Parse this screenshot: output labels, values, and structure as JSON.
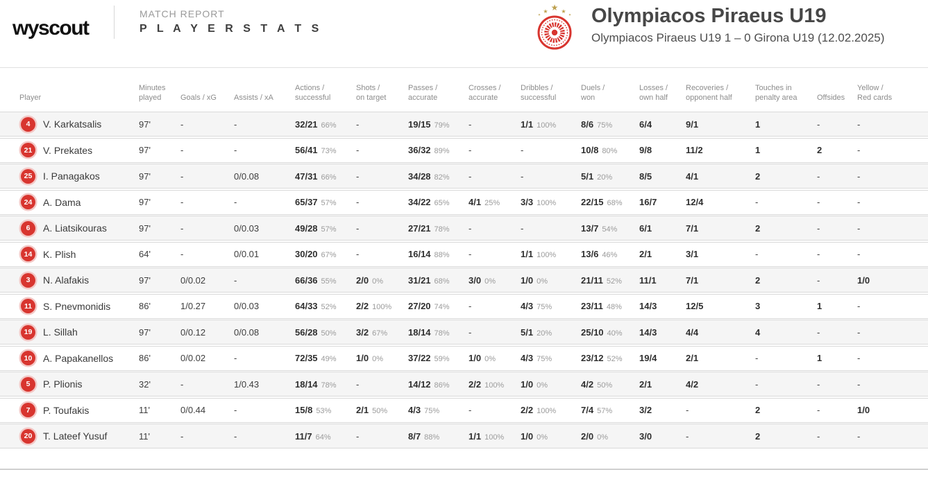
{
  "header": {
    "logo_text": "wyscout",
    "report_type": "MATCH REPORT",
    "report_name": "P L A Y E R   S T A T S",
    "team_title": "Olympiacos Piraeus U19",
    "match_subtitle": "Olympiacos Piraeus U19 1 – 0 Girona U19 (12.02.2025)",
    "crest_icon": "olympiacos-crest-icon"
  },
  "colors": {
    "accent_red": "#d8352f",
    "badge_ring": "#f3c8c6",
    "star_gold": "#bda04e",
    "row_alt_bg": "#f5f5f5",
    "row_border": "#d9d9d9",
    "text_primary": "#2f2f2f",
    "text_secondary": "#9b9b9b",
    "header_text": "#8c8c8c"
  },
  "table": {
    "columns": [
      {
        "key": "player",
        "label": "Player",
        "strong": false
      },
      {
        "key": "minutes",
        "label": "Minutes\nplayed",
        "strong": false
      },
      {
        "key": "goals",
        "label": "Goals / xG",
        "strong": false
      },
      {
        "key": "assists",
        "label": "Assists / xA",
        "strong": false
      },
      {
        "key": "actions",
        "label": "Actions /\nsuccessful",
        "strong": true
      },
      {
        "key": "shots",
        "label": "Shots /\non target",
        "strong": true
      },
      {
        "key": "passes",
        "label": "Passes /\naccurate",
        "strong": true
      },
      {
        "key": "crosses",
        "label": "Crosses /\naccurate",
        "strong": true
      },
      {
        "key": "dribbles",
        "label": "Dribbles /\nsuccessful",
        "strong": true
      },
      {
        "key": "duels",
        "label": "Duels /\nwon",
        "strong": true
      },
      {
        "key": "losses",
        "label": "Losses /\nown half",
        "strong": true
      },
      {
        "key": "recoveries",
        "label": "Recoveries /\nopponent half",
        "strong": true
      },
      {
        "key": "touches",
        "label": "Touches in\npenalty area",
        "strong": true
      },
      {
        "key": "offsides",
        "label": "Offsides",
        "strong": true
      },
      {
        "key": "cards",
        "label": "Yellow /\nRed cards",
        "strong": true
      }
    ],
    "rows": [
      {
        "num": "4",
        "name": "V. Karkatsalis",
        "stats": [
          {
            "v": "97'"
          },
          {
            "v": "-"
          },
          {
            "v": "-"
          },
          {
            "v": "32/21",
            "p": "66%"
          },
          {
            "v": "-"
          },
          {
            "v": "19/15",
            "p": "79%"
          },
          {
            "v": "-"
          },
          {
            "v": "1/1",
            "p": "100%"
          },
          {
            "v": "8/6",
            "p": "75%"
          },
          {
            "v": "6/4"
          },
          {
            "v": "9/1"
          },
          {
            "v": "1"
          },
          {
            "v": "-"
          },
          {
            "v": "-"
          }
        ]
      },
      {
        "num": "21",
        "name": "V. Prekates",
        "stats": [
          {
            "v": "97'"
          },
          {
            "v": "-"
          },
          {
            "v": "-"
          },
          {
            "v": "56/41",
            "p": "73%"
          },
          {
            "v": "-"
          },
          {
            "v": "36/32",
            "p": "89%"
          },
          {
            "v": "-"
          },
          {
            "v": "-"
          },
          {
            "v": "10/8",
            "p": "80%"
          },
          {
            "v": "9/8"
          },
          {
            "v": "11/2"
          },
          {
            "v": "1"
          },
          {
            "v": "2"
          },
          {
            "v": "-"
          }
        ]
      },
      {
        "num": "25",
        "name": "I. Panagakos",
        "stats": [
          {
            "v": "97'"
          },
          {
            "v": "-"
          },
          {
            "v": "0/0.08"
          },
          {
            "v": "47/31",
            "p": "66%"
          },
          {
            "v": "-"
          },
          {
            "v": "34/28",
            "p": "82%"
          },
          {
            "v": "-"
          },
          {
            "v": "-"
          },
          {
            "v": "5/1",
            "p": "20%"
          },
          {
            "v": "8/5"
          },
          {
            "v": "4/1"
          },
          {
            "v": "2"
          },
          {
            "v": "-"
          },
          {
            "v": "-"
          }
        ]
      },
      {
        "num": "24",
        "name": "A. Dama",
        "stats": [
          {
            "v": "97'"
          },
          {
            "v": "-"
          },
          {
            "v": "-"
          },
          {
            "v": "65/37",
            "p": "57%"
          },
          {
            "v": "-"
          },
          {
            "v": "34/22",
            "p": "65%"
          },
          {
            "v": "4/1",
            "p": "25%"
          },
          {
            "v": "3/3",
            "p": "100%"
          },
          {
            "v": "22/15",
            "p": "68%"
          },
          {
            "v": "16/7"
          },
          {
            "v": "12/4"
          },
          {
            "v": "-"
          },
          {
            "v": "-"
          },
          {
            "v": "-"
          }
        ]
      },
      {
        "num": "6",
        "name": "A. Liatsikouras",
        "stats": [
          {
            "v": "97'"
          },
          {
            "v": "-"
          },
          {
            "v": "0/0.03"
          },
          {
            "v": "49/28",
            "p": "57%"
          },
          {
            "v": "-"
          },
          {
            "v": "27/21",
            "p": "78%"
          },
          {
            "v": "-"
          },
          {
            "v": "-"
          },
          {
            "v": "13/7",
            "p": "54%"
          },
          {
            "v": "6/1"
          },
          {
            "v": "7/1"
          },
          {
            "v": "2"
          },
          {
            "v": "-"
          },
          {
            "v": "-"
          }
        ]
      },
      {
        "num": "14",
        "name": "K. Plish",
        "stats": [
          {
            "v": "64'"
          },
          {
            "v": "-"
          },
          {
            "v": "0/0.01"
          },
          {
            "v": "30/20",
            "p": "67%"
          },
          {
            "v": "-"
          },
          {
            "v": "16/14",
            "p": "88%"
          },
          {
            "v": "-"
          },
          {
            "v": "1/1",
            "p": "100%"
          },
          {
            "v": "13/6",
            "p": "46%"
          },
          {
            "v": "2/1"
          },
          {
            "v": "3/1"
          },
          {
            "v": "-"
          },
          {
            "v": "-"
          },
          {
            "v": "-"
          }
        ]
      },
      {
        "num": "3",
        "name": "N. Alafakis",
        "stats": [
          {
            "v": "97'"
          },
          {
            "v": "0/0.02"
          },
          {
            "v": "-"
          },
          {
            "v": "66/36",
            "p": "55%"
          },
          {
            "v": "2/0",
            "p": "0%"
          },
          {
            "v": "31/21",
            "p": "68%"
          },
          {
            "v": "3/0",
            "p": "0%"
          },
          {
            "v": "1/0",
            "p": "0%"
          },
          {
            "v": "21/11",
            "p": "52%"
          },
          {
            "v": "11/1"
          },
          {
            "v": "7/1"
          },
          {
            "v": "2"
          },
          {
            "v": "-"
          },
          {
            "v": "1/0"
          }
        ]
      },
      {
        "num": "11",
        "name": "S. Pnevmonidis",
        "stats": [
          {
            "v": "86'"
          },
          {
            "v": "1/0.27"
          },
          {
            "v": "0/0.03"
          },
          {
            "v": "64/33",
            "p": "52%"
          },
          {
            "v": "2/2",
            "p": "100%"
          },
          {
            "v": "27/20",
            "p": "74%"
          },
          {
            "v": "-"
          },
          {
            "v": "4/3",
            "p": "75%"
          },
          {
            "v": "23/11",
            "p": "48%"
          },
          {
            "v": "14/3"
          },
          {
            "v": "12/5"
          },
          {
            "v": "3"
          },
          {
            "v": "1"
          },
          {
            "v": "-"
          }
        ]
      },
      {
        "num": "19",
        "name": "L. Sillah",
        "stats": [
          {
            "v": "97'"
          },
          {
            "v": "0/0.12"
          },
          {
            "v": "0/0.08"
          },
          {
            "v": "56/28",
            "p": "50%"
          },
          {
            "v": "3/2",
            "p": "67%"
          },
          {
            "v": "18/14",
            "p": "78%"
          },
          {
            "v": "-"
          },
          {
            "v": "5/1",
            "p": "20%"
          },
          {
            "v": "25/10",
            "p": "40%"
          },
          {
            "v": "14/3"
          },
          {
            "v": "4/4"
          },
          {
            "v": "4"
          },
          {
            "v": "-"
          },
          {
            "v": "-"
          }
        ]
      },
      {
        "num": "10",
        "name": "A. Papakanellos",
        "stats": [
          {
            "v": "86'"
          },
          {
            "v": "0/0.02"
          },
          {
            "v": "-"
          },
          {
            "v": "72/35",
            "p": "49%"
          },
          {
            "v": "1/0",
            "p": "0%"
          },
          {
            "v": "37/22",
            "p": "59%"
          },
          {
            "v": "1/0",
            "p": "0%"
          },
          {
            "v": "4/3",
            "p": "75%"
          },
          {
            "v": "23/12",
            "p": "52%"
          },
          {
            "v": "19/4"
          },
          {
            "v": "2/1"
          },
          {
            "v": "-"
          },
          {
            "v": "1"
          },
          {
            "v": "-"
          }
        ]
      },
      {
        "num": "5",
        "name": "P. Plionis",
        "stats": [
          {
            "v": "32'"
          },
          {
            "v": "-"
          },
          {
            "v": "1/0.43"
          },
          {
            "v": "18/14",
            "p": "78%"
          },
          {
            "v": "-"
          },
          {
            "v": "14/12",
            "p": "86%"
          },
          {
            "v": "2/2",
            "p": "100%"
          },
          {
            "v": "1/0",
            "p": "0%"
          },
          {
            "v": "4/2",
            "p": "50%"
          },
          {
            "v": "2/1"
          },
          {
            "v": "4/2"
          },
          {
            "v": "-"
          },
          {
            "v": "-"
          },
          {
            "v": "-"
          }
        ]
      },
      {
        "num": "7",
        "name": "P. Toufakis",
        "stats": [
          {
            "v": "11'"
          },
          {
            "v": "0/0.44"
          },
          {
            "v": "-"
          },
          {
            "v": "15/8",
            "p": "53%"
          },
          {
            "v": "2/1",
            "p": "50%"
          },
          {
            "v": "4/3",
            "p": "75%"
          },
          {
            "v": "-"
          },
          {
            "v": "2/2",
            "p": "100%"
          },
          {
            "v": "7/4",
            "p": "57%"
          },
          {
            "v": "3/2"
          },
          {
            "v": "-"
          },
          {
            "v": "2"
          },
          {
            "v": "-"
          },
          {
            "v": "1/0"
          }
        ]
      },
      {
        "num": "20",
        "name": "T. Lateef Yusuf",
        "stats": [
          {
            "v": "11'"
          },
          {
            "v": "-"
          },
          {
            "v": "-"
          },
          {
            "v": "11/7",
            "p": "64%"
          },
          {
            "v": "-"
          },
          {
            "v": "8/7",
            "p": "88%"
          },
          {
            "v": "1/1",
            "p": "100%"
          },
          {
            "v": "1/0",
            "p": "0%"
          },
          {
            "v": "2/0",
            "p": "0%"
          },
          {
            "v": "3/0"
          },
          {
            "v": "-"
          },
          {
            "v": "2"
          },
          {
            "v": "-"
          },
          {
            "v": "-"
          }
        ]
      }
    ]
  }
}
